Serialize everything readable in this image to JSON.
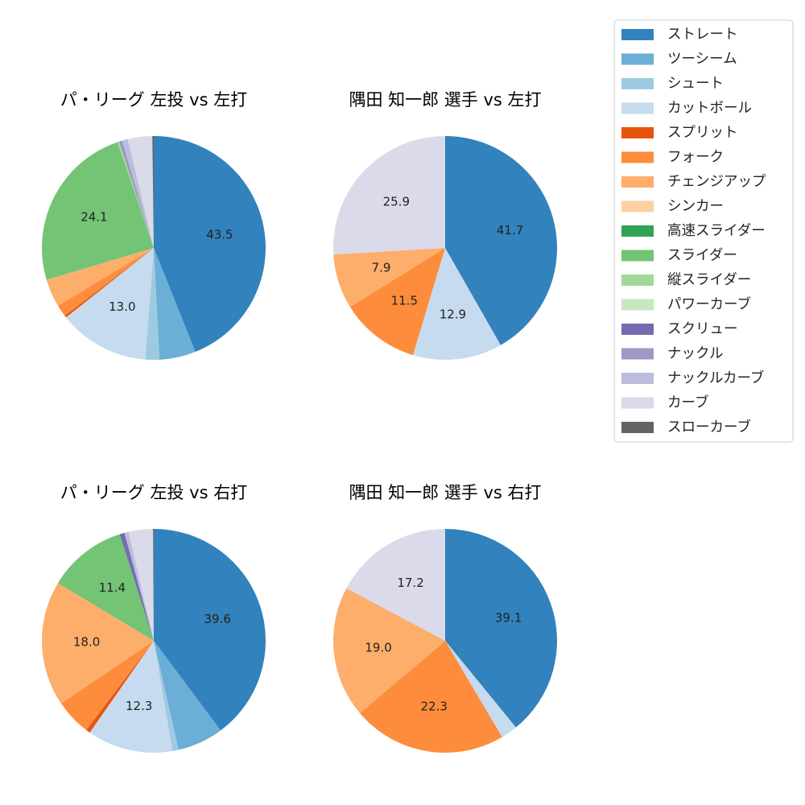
{
  "legend": [
    {
      "name": "ストレート",
      "color": "#3182bd"
    },
    {
      "name": "ツーシーム",
      "color": "#6baed6"
    },
    {
      "name": "シュート",
      "color": "#9ecae1"
    },
    {
      "name": "カットボール",
      "color": "#c6dbef"
    },
    {
      "name": "スプリット",
      "color": "#e6550d"
    },
    {
      "name": "フォーク",
      "color": "#fd8d3c"
    },
    {
      "name": "チェンジアップ",
      "color": "#fdae6b"
    },
    {
      "name": "シンカー",
      "color": "#fdd0a2"
    },
    {
      "name": "高速スライダー",
      "color": "#31a354"
    },
    {
      "name": "スライダー",
      "color": "#74c476"
    },
    {
      "name": "縦スライダー",
      "color": "#a1d99b"
    },
    {
      "name": "パワーカーブ",
      "color": "#c7e9c0"
    },
    {
      "name": "スクリュー",
      "color": "#756bb1"
    },
    {
      "name": "ナックル",
      "color": "#9e9ac8"
    },
    {
      "name": "ナックルカーブ",
      "color": "#bcbddc"
    },
    {
      "name": "カーブ",
      "color": "#dadaeb"
    },
    {
      "name": "スローカーブ",
      "color": "#636363"
    }
  ],
  "chart_data": [
    {
      "type": "pie",
      "title": "パ・リーグ 左投 vs 左打",
      "slices": [
        {
          "name": "ストレート",
          "value": 43.5,
          "label": "43.5"
        },
        {
          "name": "ツーシーム",
          "value": 5.2,
          "label": ""
        },
        {
          "name": "シュート",
          "value": 2.0,
          "label": ""
        },
        {
          "name": "カットボール",
          "value": 13.0,
          "label": "13.0"
        },
        {
          "name": "スプリット",
          "value": 0.3,
          "label": ""
        },
        {
          "name": "フォーク",
          "value": 1.7,
          "label": ""
        },
        {
          "name": "チェンジアップ",
          "value": 4.0,
          "label": ""
        },
        {
          "name": "スライダー",
          "value": 24.1,
          "label": "24.1"
        },
        {
          "name": "縦スライダー",
          "value": 0.3,
          "label": ""
        },
        {
          "name": "スクリュー",
          "value": 0.1,
          "label": ""
        },
        {
          "name": "ナックル",
          "value": 0.3,
          "label": ""
        },
        {
          "name": "ナックルカーブ",
          "value": 0.8,
          "label": ""
        },
        {
          "name": "カーブ",
          "value": 3.5,
          "label": ""
        },
        {
          "name": "スローカーブ",
          "value": 0.2,
          "label": ""
        }
      ]
    },
    {
      "type": "pie",
      "title": "隅田 知一郎 選手 vs 左打",
      "slices": [
        {
          "name": "ストレート",
          "value": 41.7,
          "label": "41.7"
        },
        {
          "name": "カットボール",
          "value": 12.9,
          "label": "12.9"
        },
        {
          "name": "フォーク",
          "value": 11.5,
          "label": "11.5"
        },
        {
          "name": "チェンジアップ",
          "value": 7.9,
          "label": "7.9"
        },
        {
          "name": "カーブ",
          "value": 25.9,
          "label": "25.9"
        }
      ]
    },
    {
      "type": "pie",
      "title": "パ・リーグ 左投 vs 右打",
      "slices": [
        {
          "name": "ストレート",
          "value": 39.6,
          "label": "39.6"
        },
        {
          "name": "ツーシーム",
          "value": 6.6,
          "label": ""
        },
        {
          "name": "シュート",
          "value": 0.9,
          "label": ""
        },
        {
          "name": "カットボール",
          "value": 12.3,
          "label": "12.3"
        },
        {
          "name": "スプリット",
          "value": 0.6,
          "label": ""
        },
        {
          "name": "フォーク",
          "value": 5.2,
          "label": ""
        },
        {
          "name": "チェンジアップ",
          "value": 18.0,
          "label": "18.0"
        },
        {
          "name": "スライダー",
          "value": 11.4,
          "label": "11.4"
        },
        {
          "name": "スクリュー",
          "value": 0.7,
          "label": ""
        },
        {
          "name": "ナックルカーブ",
          "value": 0.6,
          "label": ""
        },
        {
          "name": "カーブ",
          "value": 3.5,
          "label": ""
        },
        {
          "name": "スローカーブ",
          "value": 0.1,
          "label": ""
        }
      ]
    },
    {
      "type": "pie",
      "title": "隅田 知一郎 選手 vs 右打",
      "slices": [
        {
          "name": "ストレート",
          "value": 39.1,
          "label": "39.1"
        },
        {
          "name": "カットボール",
          "value": 2.4,
          "label": ""
        },
        {
          "name": "フォーク",
          "value": 22.3,
          "label": "22.3"
        },
        {
          "name": "チェンジアップ",
          "value": 19.0,
          "label": "19.0"
        },
        {
          "name": "カーブ",
          "value": 17.2,
          "label": "17.2"
        }
      ]
    }
  ]
}
